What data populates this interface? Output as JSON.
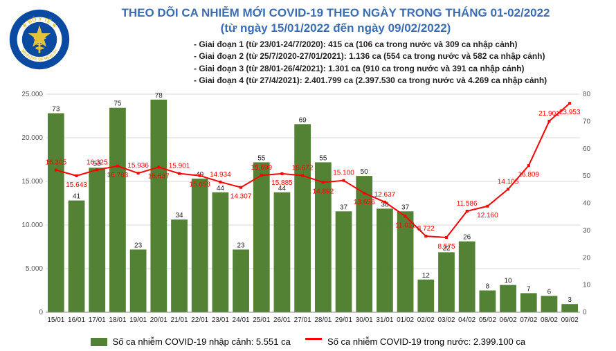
{
  "title_line1": "THEO DÕI CA NHIỄM MỚI COVID-19 THEO NGÀY TRONG THÁNG 01-02/2022",
  "title_line2": "(từ ngày 15/01/2022 đến ngày 09/02/2022)",
  "title_color": "#3b6db3",
  "phases": [
    "- Giai đoạn 1 (từ 23/01-24/7/2020): 415 ca (106 ca trong nước và 309 ca nhập cảnh)",
    "- Giai đoạn 2 (từ 25/7/2020-27/01/2021): 1.136 ca (554 ca trong nước và 582 ca nhập cảnh)",
    "- Giai đoạn 3 (từ 28/01-26/4/2021): 1.301 ca (910 ca trong nước và 391 ca nhập cảnh)",
    "- Giai đoạn 4 (từ 27/4/2021): 2.401.799 ca (2.397.530 ca trong nước và 4.269 ca nhập cảnh)"
  ],
  "legend": {
    "bar_label": "Số ca nhiễm COVID-19 nhập cảnh: 5.551 ca",
    "line_label": "Số ca nhiễm COVID-19 trong nước: 2.399.100 ca"
  },
  "chart": {
    "type": "combo_bar_line_dual_axis",
    "background_color": "#ffffff",
    "grid_color": "#d9d9d9",
    "bar_color": "#548235",
    "line_color": "#ff0000",
    "marker_color": "#ff0000",
    "font_size": 10,
    "categories": [
      "15/01",
      "16/01",
      "17/01",
      "18/01",
      "19/01",
      "20/01",
      "21/01",
      "22/01",
      "23/01",
      "24/01",
      "25/01",
      "26/01",
      "27/01",
      "28/01",
      "29/01",
      "30/01",
      "31/01",
      "01/02",
      "02/02",
      "03/02",
      "04/02",
      "05/02",
      "06/02",
      "07/02",
      "08/02",
      "09/02"
    ],
    "bar_values": [
      73,
      41,
      53,
      75,
      23,
      78,
      34,
      49,
      44,
      23,
      55,
      44,
      69,
      55,
      37,
      50,
      38,
      37,
      12,
      22,
      26,
      8,
      10,
      7,
      6,
      3
    ],
    "bar_labels": [
      "73",
      "41",
      "53",
      "75",
      "23",
      "78",
      "34",
      "49",
      "44",
      "23",
      "55",
      "44",
      "69",
      "55",
      "37",
      "50",
      "38",
      "37",
      "12",
      "22",
      "26",
      "8",
      "10",
      "7",
      "6",
      "3"
    ],
    "line_values": [
      16305,
      15643,
      16325,
      16763,
      15936,
      16637,
      15901,
      15658,
      14934,
      14307,
      15699,
      15885,
      15672,
      14892,
      15100,
      13656,
      12637,
      11011,
      8722,
      8575,
      11586,
      12160,
      14105,
      16809,
      21901,
      23953
    ],
    "line_labels": [
      "16.305",
      "15.643",
      "16.325",
      "16.763",
      "15.936",
      "16.637",
      "15.901",
      "15.658",
      "14.934",
      "14.307",
      "15.699",
      "15.885",
      "15.672",
      "14.892",
      "15.100",
      "13.656",
      "12.637",
      "11.011",
      "8.722",
      "8.575",
      "11.586",
      "12.160",
      "14.105",
      "16.809",
      "21.901",
      "23.953"
    ],
    "y_left": {
      "min": 0,
      "max": 25000,
      "step": 5000,
      "labels": [
        "0",
        "5.000",
        "10.000",
        "15.000",
        "20.000",
        "25.000"
      ]
    },
    "y_right": {
      "min": 0,
      "max": 80,
      "step": 10,
      "labels": [
        "0",
        "10",
        "20",
        "30",
        "40",
        "50",
        "60",
        "70",
        "80"
      ]
    },
    "x_fontsize": 10,
    "y_fontsize": 10,
    "line_width": 2,
    "marker_size": 4,
    "bar_width": 0.8,
    "label_color_line": "#ff0000",
    "label_color_bar": "#222222",
    "bar_data_label_offset": 3,
    "line_data_label_offset": 8
  },
  "logo": {
    "outer_text_top": "BỘ Y TẾ",
    "outer_text_bottom": "MINISTRY OF HEALTH",
    "ring_fill": "#0a4aa0",
    "star_fill": "#e3c33b",
    "center_fill": "#0a4aa0",
    "serpent_fill": "#e3c33b"
  }
}
